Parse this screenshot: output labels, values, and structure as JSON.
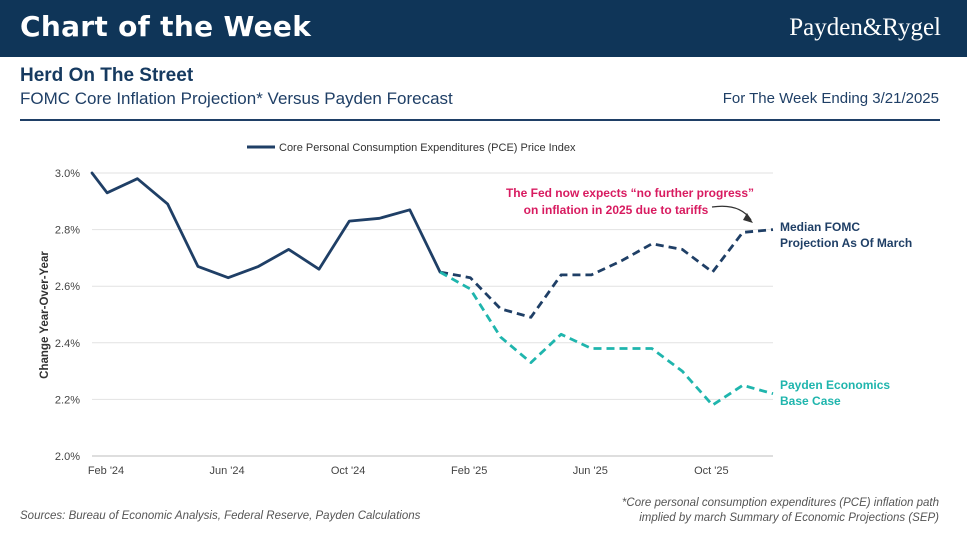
{
  "header": {
    "banner_title": "Chart of the Week",
    "brand": "Payden&Rygel",
    "headline": "Herd On The Street",
    "subtitle": "FOMC Core Inflation Projection* Versus Payden Forecast",
    "week": "For The Week Ending 3/21/2025"
  },
  "footer": {
    "sources": "Sources: Bureau of Economic Analysis, Federal Reserve, Payden Calculations",
    "note_line1": "*Core personal consumption expenditures (PCE) inflation path",
    "note_line2": "implied by march Summary of Economic Projections (SEP)"
  },
  "colors": {
    "navy": "#1f3f66",
    "teal": "#1fb5ad",
    "annotation": "#d81b60"
  },
  "chart_data": {
    "type": "line",
    "title": "FOMC Core Inflation Projection* Versus Payden Forecast",
    "xlabel": "",
    "ylabel": "Change Year-Over-Year",
    "ylim": [
      2.0,
      3.0
    ],
    "y_ticks": [
      "2.0%",
      "2.2%",
      "2.4%",
      "2.6%",
      "2.8%",
      "3.0%"
    ],
    "x_ticks": [
      "Feb '24",
      "Jun '24",
      "Oct '24",
      "Feb '25",
      "Jun '25",
      "Oct '25"
    ],
    "x_tick_index": [
      0,
      4,
      8,
      12,
      16,
      20
    ],
    "legend": {
      "label": "Core Personal Consumption Expenditures (PCE) Price Index",
      "position": "top-center"
    },
    "series": [
      {
        "name": "Core PCE Price Index",
        "style": "solid",
        "color": "#1f3f66",
        "x": [
          0,
          0.5,
          1.5,
          2.5,
          3.5,
          4.5,
          5.5,
          6.5,
          7.5,
          8.5,
          9.5,
          10.5,
          11.5
        ],
        "values": [
          3.0,
          2.93,
          2.98,
          2.89,
          2.67,
          2.63,
          2.67,
          2.73,
          2.66,
          2.83,
          2.84,
          2.87,
          2.65
        ]
      },
      {
        "name": "Median FOMC Projection As Of March",
        "style": "dashed",
        "color": "#1f3f66",
        "x": [
          11.5,
          12.5,
          13.5,
          14.5,
          15.5,
          16.5,
          17.5,
          18.5,
          19.5,
          20.5,
          21.5,
          22.5
        ],
        "values": [
          2.65,
          2.63,
          2.52,
          2.49,
          2.64,
          2.64,
          2.69,
          2.75,
          2.73,
          2.65,
          2.79,
          2.8
        ]
      },
      {
        "name": "Payden Economics Base Case",
        "style": "dashed",
        "color": "#1fb5ad",
        "x": [
          11.5,
          12.5,
          13.5,
          14.5,
          15.5,
          16.5,
          17.5,
          18.5,
          19.5,
          20.5,
          21.5,
          22.5
        ],
        "values": [
          2.65,
          2.59,
          2.42,
          2.33,
          2.43,
          2.38,
          2.38,
          2.38,
          2.3,
          2.18,
          2.25,
          2.22
        ]
      }
    ],
    "series_labels": [
      {
        "text": "Median FOMC",
        "color": "#1f3f66"
      },
      {
        "text": "Projection As Of March",
        "color": "#1f3f66"
      },
      {
        "text": "Payden Economics",
        "color": "#1fb5ad"
      },
      {
        "text": "Base Case",
        "color": "#1fb5ad"
      }
    ],
    "annotation": {
      "line1": "The Fed now expects “no further progress”",
      "line2": "on inflation in 2025 due to tariffs",
      "color": "#d81b60"
    }
  }
}
